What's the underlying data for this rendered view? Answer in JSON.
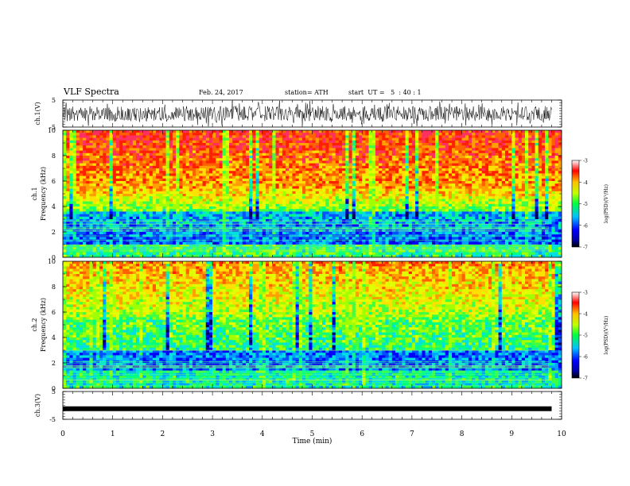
{
  "header": {
    "title": "VLF Spectra",
    "date": "Feb. 24, 2017",
    "station": "station= ATH",
    "start": "start  UT =   5  : 40 : 1"
  },
  "chart_data": [
    {
      "type": "line",
      "name": "ch1-waveform",
      "ylabel": "ch.1(V)",
      "ylim": [
        -5,
        5
      ],
      "yticks": [
        "5",
        "-5"
      ],
      "xlim": [
        0,
        10
      ],
      "description_values": "noise waveform, amplitude mostly within ±2 V"
    },
    {
      "type": "heatmap",
      "name": "ch1-spectrogram",
      "ylabel": "ch.1\nFrequency  (kHz)",
      "ylabel_lines": [
        "ch.1",
        "Frequency  (kHz)"
      ],
      "ylim": [
        0,
        10
      ],
      "yticks": [
        "0",
        "2",
        "4",
        "6",
        "8",
        "10"
      ],
      "xlim": [
        0,
        10
      ],
      "colorbar": {
        "label": "log(PSD)(V²/Hz)",
        "ticks": [
          "-3",
          "-4",
          "-5",
          "-6",
          "-7"
        ],
        "range": [
          -7,
          -3
        ]
      }
    },
    {
      "type": "heatmap",
      "name": "ch2-spectrogram",
      "ylabel": "ch.2\nFrequency  (kHz)",
      "ylabel_lines": [
        "ch.2",
        "Frequency  (kHz)"
      ],
      "ylim": [
        0,
        10
      ],
      "yticks": [
        "0",
        "2",
        "4",
        "6",
        "8",
        "10"
      ],
      "xlim": [
        0,
        10
      ],
      "colorbar": {
        "label": "log(PSD)(V²/Hz)",
        "ticks": [
          "-3",
          "-4",
          "-5",
          "-6",
          "-7"
        ],
        "range": [
          -7,
          -3
        ]
      }
    },
    {
      "type": "line",
      "name": "ch3-waveform",
      "ylabel": "ch.3(V)",
      "ylim": [
        -5,
        5
      ],
      "yticks": [
        "5",
        "-5"
      ],
      "xlim": [
        0,
        10
      ],
      "x": [
        0,
        9.8
      ],
      "y": [
        -1.2,
        -1.2
      ]
    }
  ],
  "xaxis": {
    "label": "Time  (min)",
    "ticks": [
      "0",
      "1",
      "2",
      "3",
      "4",
      "5",
      "6",
      "7",
      "8",
      "9",
      "10"
    ],
    "range": [
      0,
      10
    ]
  },
  "colors": {
    "colormap": [
      "#0000a0",
      "#0000ff",
      "#0080ff",
      "#00e0e0",
      "#00ff80",
      "#80ff00",
      "#ffff00",
      "#ff8000",
      "#ff0000",
      "#ff80a0"
    ]
  }
}
